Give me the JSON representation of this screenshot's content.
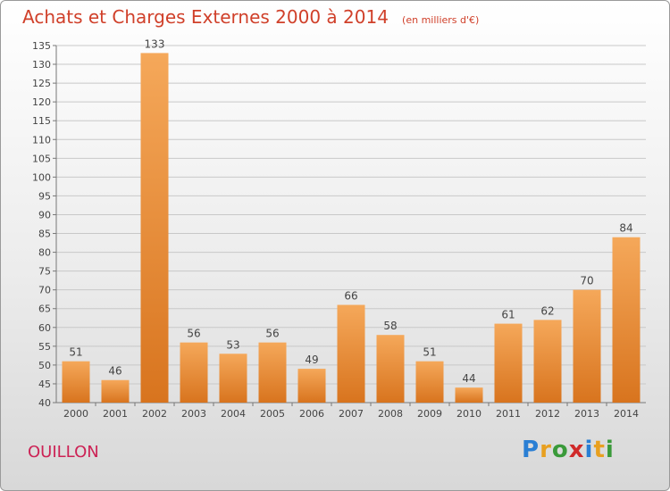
{
  "header": {
    "title": "Achats et Charges Externes 2000 à 2014",
    "subtitle": "(en milliers d'€)"
  },
  "footer": {
    "commune": "OUILLON",
    "logo_letters": [
      "P",
      "r",
      "o",
      "x",
      "i",
      "t",
      "i"
    ],
    "logo_colors": [
      "#2a7fd4",
      "#e8a020",
      "#3a9a3a",
      "#d02a2a",
      "#2a7fd4",
      "#e8a020",
      "#3a9a3a"
    ]
  },
  "colors": {
    "bar_light": "#f5a85a",
    "bar_dark": "#d8741e",
    "grid": "#c8c8c8"
  },
  "chart_data": {
    "type": "bar",
    "title": "Achats et Charges Externes 2000 à 2014",
    "subtitle": "(en milliers d'€)",
    "categories": [
      "2000",
      "2001",
      "2002",
      "2003",
      "2004",
      "2005",
      "2006",
      "2007",
      "2008",
      "2009",
      "2010",
      "2011",
      "2012",
      "2013",
      "2014"
    ],
    "values": [
      51,
      46,
      133,
      56,
      53,
      56,
      49,
      66,
      58,
      51,
      44,
      61,
      62,
      70,
      84
    ],
    "data_labels": [
      "51",
      "46",
      "133",
      "56",
      "53",
      "56",
      "49",
      "66",
      "58",
      "51",
      "44",
      "61",
      "62",
      "70",
      "84"
    ],
    "ylim": [
      40,
      135
    ],
    "yticks": [
      40,
      45,
      50,
      55,
      60,
      65,
      70,
      75,
      80,
      85,
      90,
      95,
      100,
      105,
      110,
      115,
      120,
      125,
      130,
      135
    ],
    "ytick_labels": [
      "40",
      "45",
      "50",
      "55",
      "60",
      "65",
      "70",
      "75",
      "80",
      "85",
      "90",
      "95",
      "100",
      "105",
      "110",
      "115",
      "120",
      "125",
      "130",
      "135"
    ],
    "grid": true,
    "legend": "none"
  }
}
